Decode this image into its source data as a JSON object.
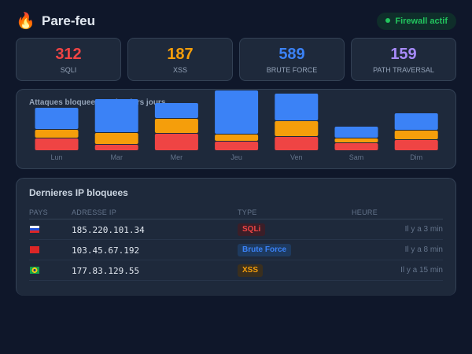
{
  "header": {
    "title": "Pare-feu",
    "logo_icon": "fire-icon",
    "status": "Firewall actif",
    "status_color": "#22c55e"
  },
  "stats": [
    {
      "value": "312",
      "label": "SQLI",
      "color": "#ef4444"
    },
    {
      "value": "187",
      "label": "XSS",
      "color": "#f59e0b"
    },
    {
      "value": "589",
      "label": "BRUTE FORCE",
      "color": "#3b82f6"
    },
    {
      "value": "159",
      "label": "PATH TRAVERSAL",
      "color": "#a78bfa"
    }
  ],
  "chart_data": {
    "type": "bar",
    "stacked": true,
    "title": "Attaques bloquees - 7 derniers jours",
    "categories": [
      "Lun",
      "Mar",
      "Mer",
      "Jeu",
      "Ven",
      "Sam",
      "Dim"
    ],
    "series": [
      {
        "color": "#ef4444",
        "values": [
          16,
          8,
          22,
          12,
          18,
          10,
          14
        ]
      },
      {
        "color": "#f59e0b",
        "values": [
          11,
          15,
          19,
          9,
          20,
          6,
          12
        ]
      },
      {
        "color": "#3b82f6",
        "values": [
          28,
          43,
          20,
          56,
          35,
          15,
          22
        ]
      }
    ]
  },
  "table": {
    "title": "Dernieres IP bloquees",
    "columns": [
      "PAYS",
      "ADRESSE IP",
      "TYPE",
      "HEURE"
    ],
    "rows": [
      {
        "flag": "russia-flag-icon",
        "ip": "185.220.101.34",
        "type": "SQLi",
        "type_color": "#ef4444",
        "type_bg": "#3b1e28",
        "time": "Il y a 3 min"
      },
      {
        "flag": "china-flag-icon",
        "ip": "103.45.67.192",
        "type": "Brute Force",
        "type_color": "#3b82f6",
        "type_bg": "#1e3a5f",
        "time": "Il y a 8 min"
      },
      {
        "flag": "brazil-flag-icon",
        "ip": "177.83.129.55",
        "type": "XSS",
        "type_color": "#f59e0b",
        "type_bg": "#3a2f1e",
        "time": "Il y a 15 min"
      }
    ]
  }
}
